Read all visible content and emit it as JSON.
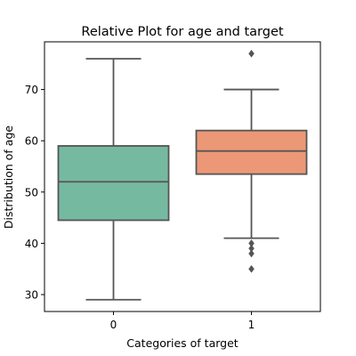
{
  "chart_data": {
    "type": "box",
    "title": "Relative Plot for age and target",
    "xlabel": "Categories of target",
    "ylabel": "Distribution of age",
    "categories": [
      "0",
      "1"
    ],
    "boxes": [
      {
        "category": "0",
        "whisker_low": 29,
        "q1": 44.5,
        "median": 52,
        "q3": 59,
        "whisker_high": 76,
        "outliers": [],
        "color": "#76b9a1"
      },
      {
        "category": "1",
        "whisker_low": 41,
        "q1": 53.5,
        "median": 58,
        "q3": 62,
        "whisker_high": 70,
        "outliers": [
          40,
          39,
          38,
          35,
          77
        ],
        "color": "#ec9877"
      }
    ],
    "ylim": [
      26.7,
      79.3
    ],
    "yticks": [
      30,
      40,
      50,
      60,
      70
    ],
    "grid": false,
    "legend": "none",
    "colors": {
      "line": "#555555",
      "axis": "#000000"
    }
  }
}
